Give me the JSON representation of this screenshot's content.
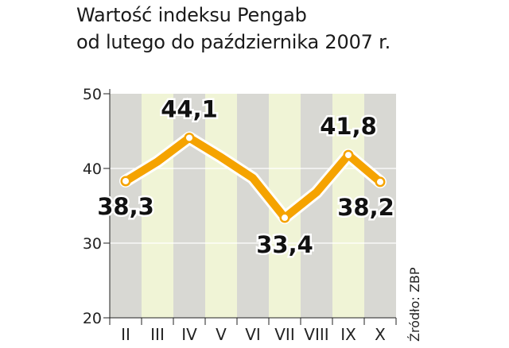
{
  "chart_data": {
    "type": "line",
    "title": "Wartość indeksu Pengab",
    "subtitle": "od lutego do października 2007 r.",
    "categories": [
      "II",
      "III",
      "IV",
      "V",
      "VI",
      "VII",
      "VIII",
      "IX",
      "X"
    ],
    "series": [
      {
        "values": [
          38.3,
          null,
          44.1,
          null,
          null,
          33.4,
          null,
          41.8,
          38.2
        ]
      }
    ],
    "path_values": [
      38.3,
      40.9,
      44.1,
      41.5,
      38.7,
      33.4,
      36.8,
      41.8,
      38.2
    ],
    "data_labels": [
      {
        "index": 0,
        "text": "38,3"
      },
      {
        "index": 2,
        "text": "44,1"
      },
      {
        "index": 5,
        "text": "33,4"
      },
      {
        "index": 7,
        "text": "41,8"
      },
      {
        "index": 8,
        "text": "38,2"
      }
    ],
    "yticks": [
      "20",
      "30",
      "40",
      "50"
    ],
    "ylim": [
      20,
      50
    ],
    "grid": true,
    "source": "Źródło: ZBP",
    "colors": {
      "line": "#f5a300",
      "marker_fill": "#ffffff",
      "band_light": "#f0f4d6",
      "band_dark": "#d8d8d3",
      "grid": "#ffffff",
      "axis": "#222222"
    }
  }
}
